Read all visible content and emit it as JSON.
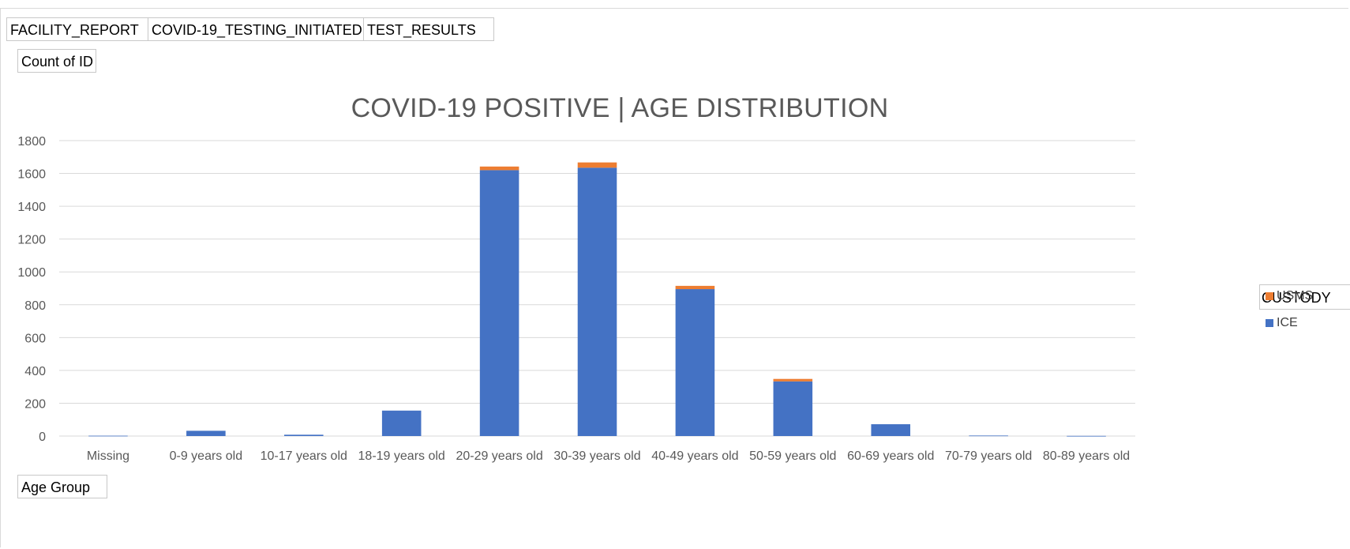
{
  "field_buttons": {
    "facility_report": "FACILITY_REPORT",
    "testing_initiated": "COVID-19_TESTING_INITIATED",
    "test_results": "TEST_RESULTS",
    "values_field": "Count of ID",
    "axis_field": "Age Group"
  },
  "legend": {
    "title": "CUSTODY"
  },
  "colors": {
    "ice": "#4472C4",
    "usms": "#ED7D31",
    "gridline": "#d9d9d9",
    "axis_text": "#595959"
  },
  "chart_data": {
    "type": "bar",
    "stacked": true,
    "title": "COVID-19 POSITIVE | AGE DISTRIBUTION",
    "xlabel": "",
    "ylabel": "",
    "ylim": [
      0,
      1800
    ],
    "yticks": [
      0,
      200,
      400,
      600,
      800,
      1000,
      1200,
      1400,
      1600,
      1800
    ],
    "grid": true,
    "legend_position": "right",
    "categories": [
      "Missing",
      "0-9 years old",
      "10-17 years old",
      "18-19 years old",
      "20-29 years old",
      "30-39 years old",
      "40-49 years old",
      "50-59 years old",
      "60-69 years old",
      "70-79 years old",
      "80-89 years old"
    ],
    "series": [
      {
        "name": "ICE",
        "color": "#4472C4",
        "values": [
          2,
          32,
          8,
          155,
          1620,
          1635,
          895,
          333,
          72,
          3,
          1
        ]
      },
      {
        "name": "USMS",
        "color": "#ED7D31",
        "values": [
          0,
          0,
          0,
          0,
          22,
          32,
          20,
          15,
          0,
          0,
          0
        ]
      }
    ]
  }
}
